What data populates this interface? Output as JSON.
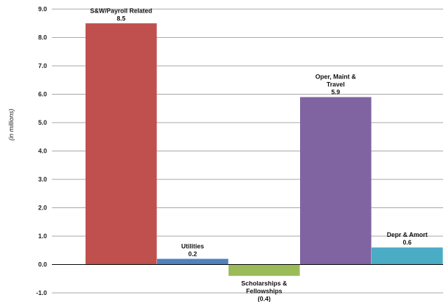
{
  "chart_data": {
    "type": "bar",
    "title": "",
    "xlabel": "",
    "ylabel": "(in  millions)",
    "ylim": [
      -1.0,
      9.0
    ],
    "yticks": [
      "-1.0",
      "0.0",
      "1.0",
      "2.0",
      "3.0",
      "4.0",
      "5.0",
      "6.0",
      "7.0",
      "8.0",
      "9.0"
    ],
    "grid": true,
    "categories": [
      "S&W/Payroll Related",
      "Utilities",
      "Scholarships & Fellowships",
      "Oper, Maint & Travel",
      "Depr & Amort"
    ],
    "category_label_lines": [
      [
        "S&W/Payroll Related"
      ],
      [
        "Utilities"
      ],
      [
        "Scholarships &",
        "Fellowships"
      ],
      [
        "Oper, Maint &",
        "Travel"
      ],
      [
        "Depr & Amort"
      ]
    ],
    "values": [
      8.5,
      0.2,
      -0.4,
      5.9,
      0.6
    ],
    "value_labels": [
      "8.5",
      "0.2",
      "(0.4)",
      "5.9",
      "0.6"
    ],
    "colors": [
      "#c0504d",
      "#4f81bd",
      "#9bbb59",
      "#8064a2",
      "#4bacc6"
    ]
  }
}
